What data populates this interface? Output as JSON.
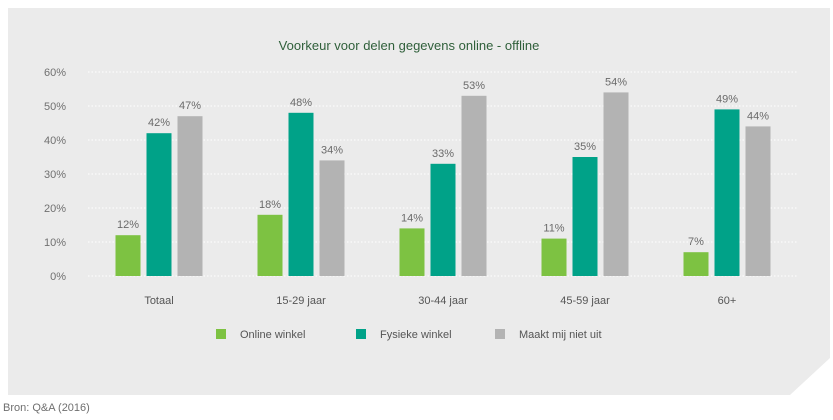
{
  "chart_data": {
    "type": "bar",
    "title": "Voorkeur voor delen gegevens online - offline",
    "categories": [
      "Totaal",
      "15-29 jaar",
      "30-44 jaar",
      "45-59 jaar",
      "60+"
    ],
    "series": [
      {
        "name": "Online winkel",
        "values": [
          12,
          18,
          14,
          11,
          7
        ],
        "color": "#7dc242"
      },
      {
        "name": "Fysieke winkel",
        "values": [
          42,
          48,
          33,
          35,
          49
        ],
        "color": "#00a288"
      },
      {
        "name": "Maakt mij niet uit",
        "values": [
          47,
          34,
          53,
          54,
          44
        ],
        "color": "#b3b3b3"
      }
    ],
    "yticks": [
      "0%",
      "10%",
      "20%",
      "30%",
      "40%",
      "50%",
      "60%"
    ],
    "ylim": [
      0,
      60
    ],
    "value_suffix": "%",
    "grid": true,
    "legend_position": "bottom",
    "background_color": "#ebebeb"
  },
  "source": "Bron: Q&A (2016)"
}
